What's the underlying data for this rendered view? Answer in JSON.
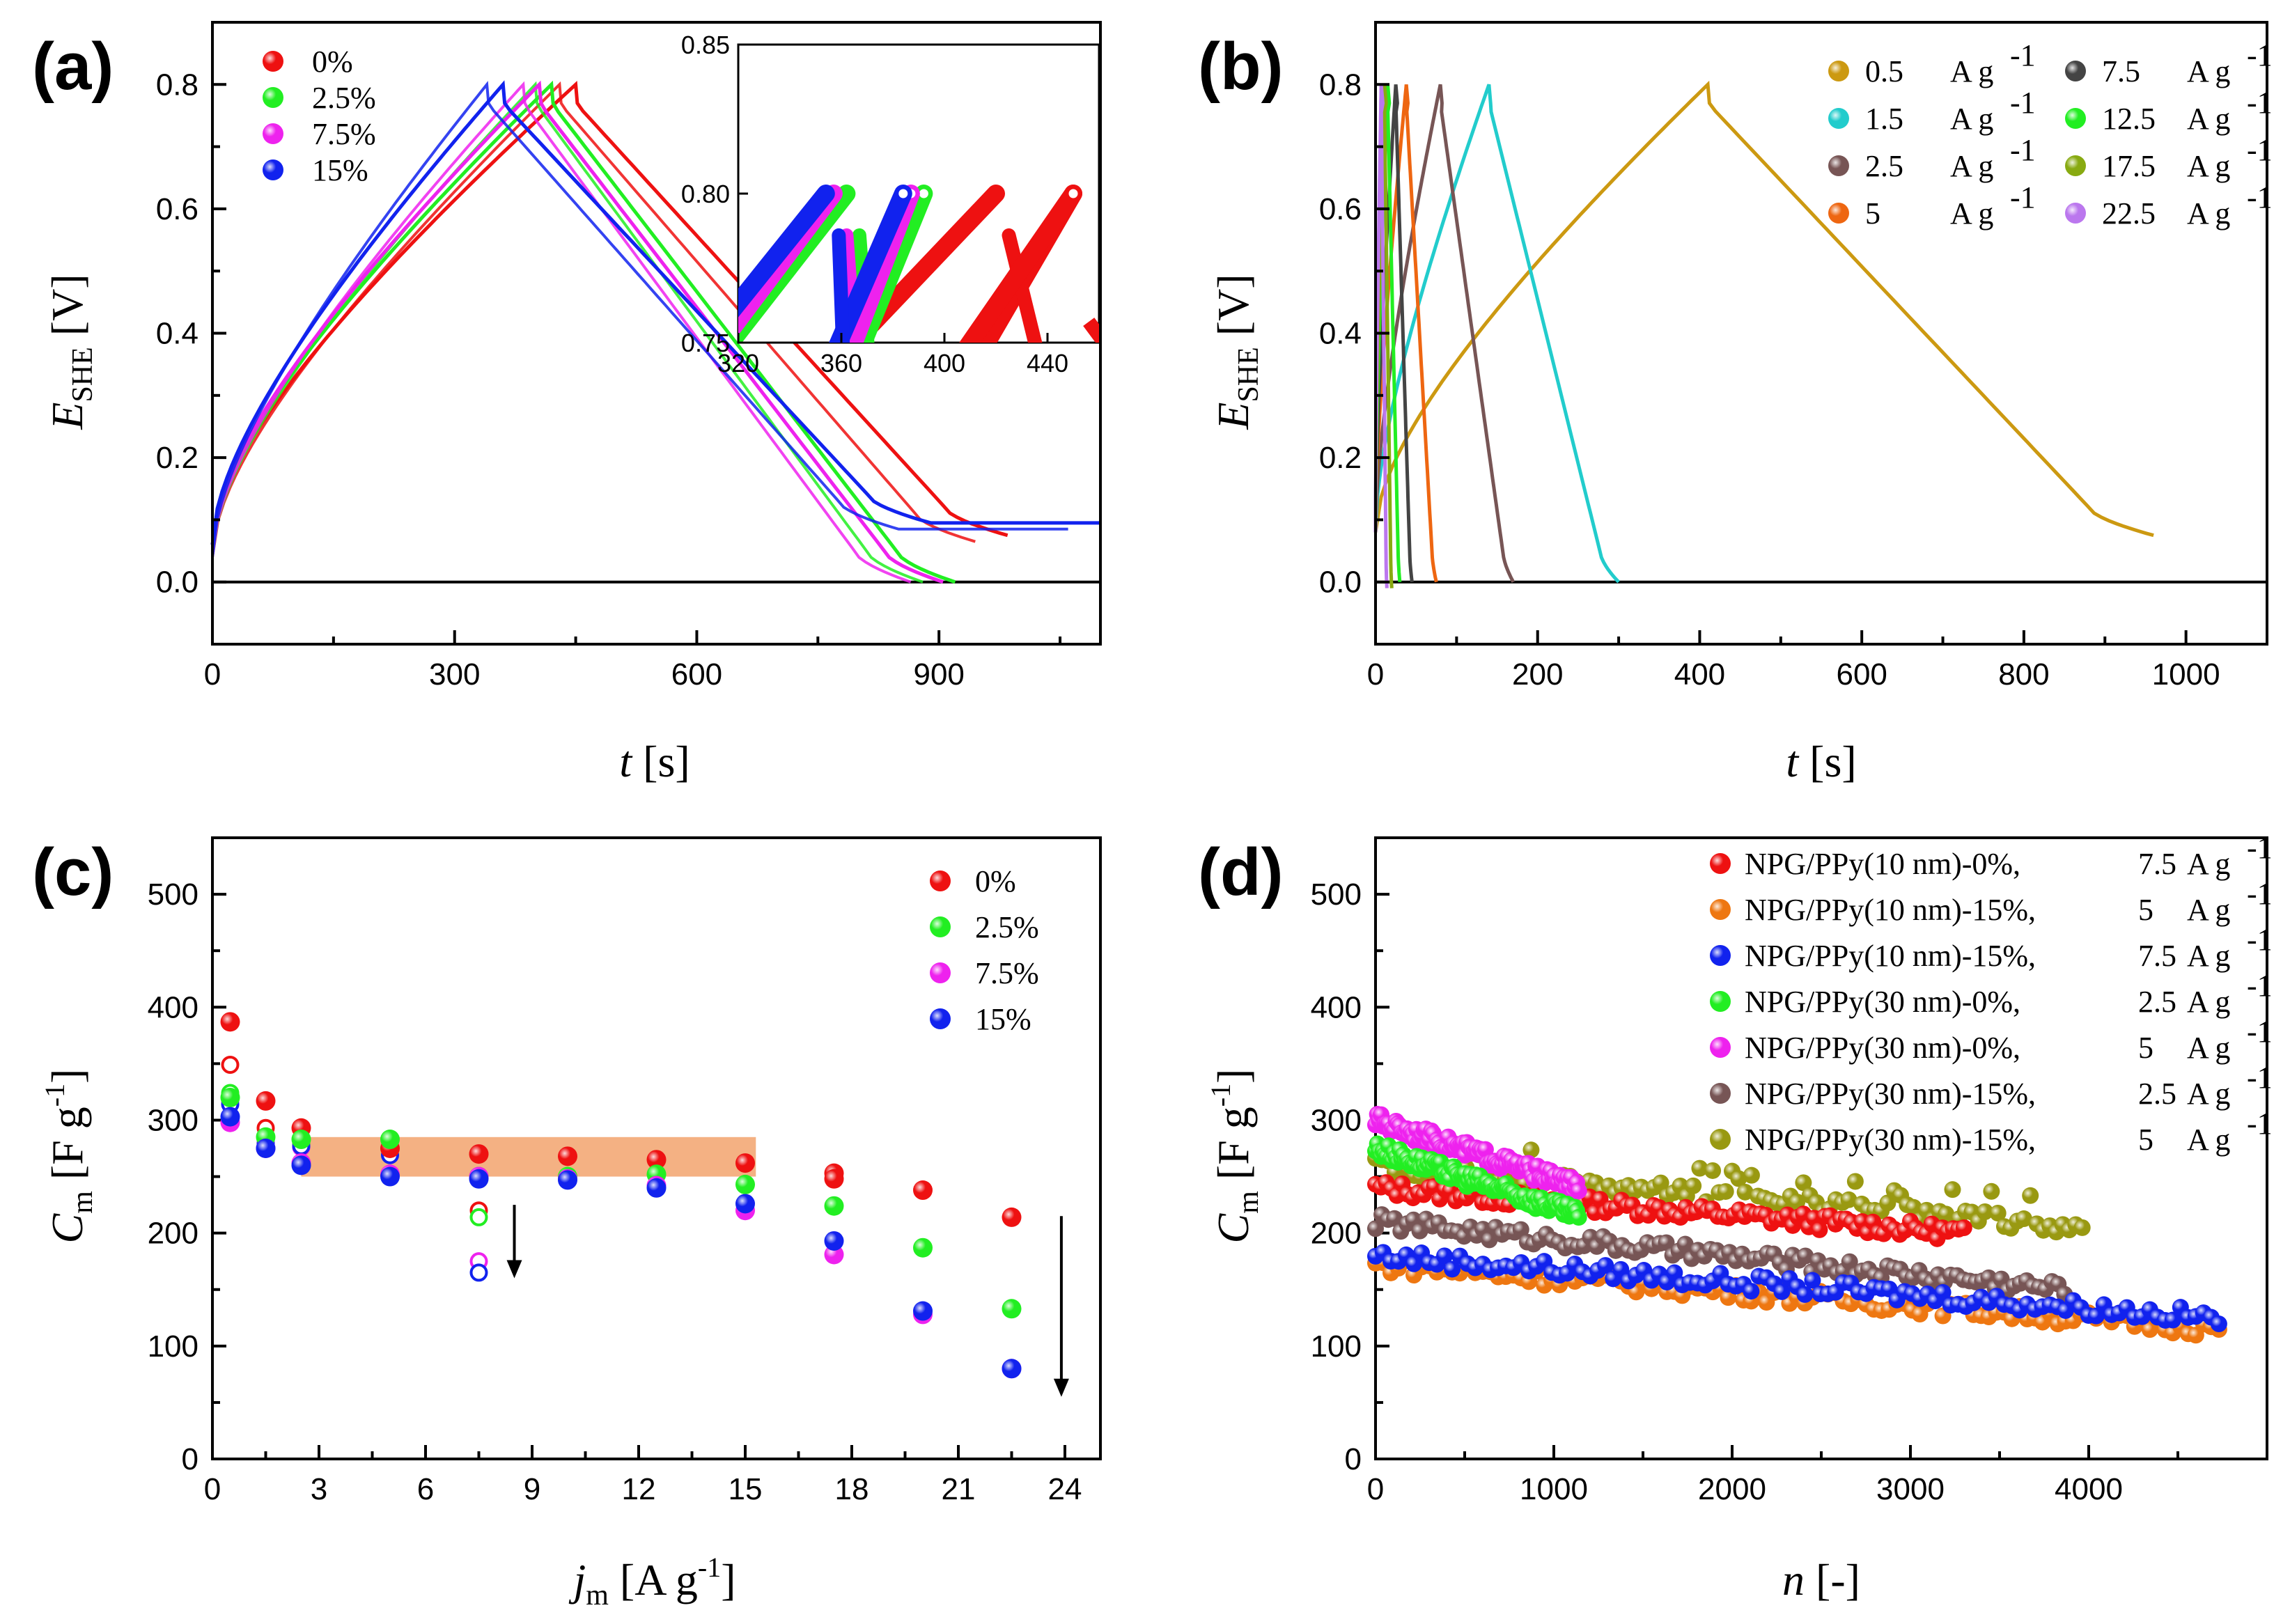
{
  "figure": {
    "panels": [
      "(a)",
      "(b)",
      "(c)",
      "(d)"
    ]
  },
  "chart_data": [
    {
      "panel": "(a)",
      "type": "line",
      "xlabel": "t [s]",
      "ylabel": "E_SHE [V]",
      "xlim": [
        0,
        1100
      ],
      "ylim": [
        -0.1,
        0.9
      ],
      "xticks": [
        0,
        300,
        600,
        900
      ],
      "yticks": [
        0.0,
        0.2,
        0.4,
        0.6,
        0.8
      ],
      "legend": [
        "0%",
        "2.5%",
        "7.5%",
        "15%"
      ],
      "colors": [
        "#ee1111",
        "#22ee22",
        "#ee22ee",
        "#1122ee"
      ],
      "series": [
        {
          "name": "0%",
          "charge_end": 450,
          "discharge_end": 985,
          "tail_end": 950,
          "tail_v": 0.075
        },
        {
          "name": "2.5%",
          "charge_end": 420,
          "discharge_end": 920,
          "tail_end": 920,
          "tail_v": 0.0
        },
        {
          "name": "7.5%",
          "charge_end": 405,
          "discharge_end": 905,
          "tail_end": 905,
          "tail_v": 0.0
        },
        {
          "name": "15%",
          "charge_end": 360,
          "discharge_end": 890,
          "tail_end": 1100,
          "tail_v": 0.095
        }
      ],
      "inset": {
        "xlim": [
          320,
          460
        ],
        "ylim": [
          0.75,
          0.85
        ],
        "xticks": [
          320,
          360,
          400,
          440
        ],
        "yticks": [
          0.75,
          0.8,
          0.85
        ],
        "ytick_labels": [
          "0.75",
          "0.80",
          "0.85"
        ]
      }
    },
    {
      "panel": "(b)",
      "type": "line",
      "xlabel": "t [s]",
      "ylabel": "E_SHE [V]",
      "xlim": [
        0,
        1100
      ],
      "ylim": [
        -0.1,
        0.9
      ],
      "xticks": [
        0,
        200,
        400,
        600,
        800,
        1000
      ],
      "yticks": [
        0.0,
        0.2,
        0.4,
        0.6,
        0.8
      ],
      "legend_values": [
        "0.5",
        "1.5",
        "2.5",
        "5",
        "7.5",
        "12.5",
        "17.5",
        "22.5"
      ],
      "legend_unit": "A g",
      "legend_unit_sup": "-1",
      "colors": [
        "#cc9911",
        "#22cccc",
        "#775555",
        "#ee6611",
        "#444444",
        "#22ee22",
        "#88aa11",
        "#bb77ee"
      ],
      "series": [
        {
          "name": "0.5",
          "charge_end": 410,
          "discharge_end": 960,
          "end_v": 0.075
        },
        {
          "name": "1.5",
          "charge_end": 140,
          "discharge_end": 300,
          "end_v": 0.0
        },
        {
          "name": "2.5",
          "charge_end": 80,
          "discharge_end": 170,
          "end_v": 0.0
        },
        {
          "name": "5",
          "charge_end": 38,
          "discharge_end": 75,
          "end_v": 0.0
        },
        {
          "name": "7.5",
          "charge_end": 25,
          "discharge_end": 45,
          "end_v": 0.0
        },
        {
          "name": "12.5",
          "charge_end": 15,
          "discharge_end": 30,
          "end_v": 0.0
        },
        {
          "name": "17.5",
          "charge_end": 11,
          "discharge_end": 20,
          "end_v": -0.01
        },
        {
          "name": "22.5",
          "charge_end": 7,
          "discharge_end": 14,
          "end_v": -0.01
        }
      ]
    },
    {
      "panel": "(c)",
      "type": "scatter",
      "xlabel": "j_m [A g^-1]",
      "ylabel": "C_m [F g^-1]",
      "xlim": [
        0,
        25
      ],
      "ylim": [
        0,
        550
      ],
      "xticks": [
        0,
        3,
        6,
        9,
        12,
        15,
        18,
        21,
        24
      ],
      "yticks": [
        0,
        100,
        200,
        300,
        400,
        500
      ],
      "legend": [
        "0%",
        "2.5%",
        "7.5%",
        "15%"
      ],
      "colors": [
        "#ee1111",
        "#22ee22",
        "#ee22ee",
        "#1122ee"
      ],
      "filled_series": [
        {
          "name": "0%",
          "x": [
            0.5,
            1.5,
            2.5,
            5,
            7.5,
            10,
            12.5,
            15,
            17.5,
            17.5,
            20,
            22.5
          ],
          "y": [
            387,
            317,
            293,
            275,
            270,
            268,
            265,
            262,
            253,
            248,
            238,
            214
          ]
        },
        {
          "name": "2.5%",
          "x": [
            0.5,
            1.5,
            2.5,
            5,
            7.5,
            10,
            12.5,
            15,
            17.5,
            20,
            22.5
          ],
          "y": [
            320,
            285,
            283,
            283,
            250,
            250,
            252,
            243,
            224,
            187,
            133
          ]
        },
        {
          "name": "7.5%",
          "x": [
            0.5,
            1.5,
            2.5,
            5,
            7.5,
            10,
            12.5,
            15,
            17.5,
            20,
            22.5
          ],
          "y": [
            298,
            275,
            262,
            252,
            250,
            248,
            242,
            220,
            181,
            128,
            80
          ]
        },
        {
          "name": "15%",
          "x": [
            0.5,
            1.5,
            2.5,
            5,
            7.5,
            10,
            12.5,
            15,
            17.5,
            20,
            22.5
          ],
          "y": [
            303,
            275,
            260,
            250,
            248,
            247,
            240,
            226,
            193,
            131,
            80
          ]
        }
      ],
      "open_series": [
        {
          "name": "0%",
          "x": [
            0.5,
            1.5,
            2.5,
            7.5
          ],
          "y": [
            349,
            293,
            280,
            220
          ]
        },
        {
          "name": "2.5%",
          "x": [
            0.5,
            1.5,
            2.5,
            5,
            7.5
          ],
          "y": [
            324,
            283,
            278,
            282,
            214
          ]
        },
        {
          "name": "7.5%",
          "x": [
            0.5,
            1.5,
            2.5,
            5,
            7.5
          ],
          "y": [
            317,
            280,
            276,
            277,
            175
          ]
        },
        {
          "name": "15%",
          "x": [
            0.5,
            1.5,
            2.5,
            5,
            7.5
          ],
          "y": [
            314,
            279,
            277,
            269,
            165
          ]
        }
      ],
      "band": {
        "x": [
          2.5,
          15.3
        ],
        "y": [
          250,
          285
        ],
        "color": "#f4b183"
      },
      "arrows": [
        {
          "x": 8.5,
          "y_from": 225,
          "y_to": 160
        },
        {
          "x": 23.9,
          "y_from": 215,
          "y_to": 55
        }
      ]
    },
    {
      "panel": "(d)",
      "type": "scatter",
      "xlabel": "n [-]",
      "ylabel": "C_m [F g^-1]",
      "xlim": [
        0,
        5000
      ],
      "ylim": [
        0,
        550
      ],
      "xticks": [
        0,
        1000,
        2000,
        3000,
        4000
      ],
      "yticks": [
        0,
        100,
        200,
        300,
        400,
        500
      ],
      "legend_names": [
        "NPG/PPy(10 nm)-0%,",
        "NPG/PPy(10 nm)-15%,",
        "NPG/PPy(10 nm)-15%,",
        "NPG/PPy(30 nm)-0%,",
        "NPG/PPy(30 nm)-0%,",
        "NPG/PPy(30 nm)-15%,",
        "NPG/PPy(30 nm)-15%,"
      ],
      "legend_rates": [
        "7.5",
        "5",
        "7.5",
        "2.5",
        "5",
        "2.5",
        "5"
      ],
      "legend_unit": "A g",
      "legend_unit_sup": "-1",
      "colors": [
        "#ee1111",
        "#ee7711",
        "#1122ee",
        "#22ee22",
        "#ee22ee",
        "#775555",
        "#999911"
      ],
      "series": [
        {
          "name": "NPG/PPy(10 nm)-0%, 7.5",
          "n_end": 3300,
          "c_start": 240,
          "c_end": 200
        },
        {
          "name": "NPG/PPy(10 nm)-15%, 5",
          "n_end": 4730,
          "c_start": 172,
          "c_end": 115
        },
        {
          "name": "NPG/PPy(10 nm)-15%, 7.5",
          "n_end": 4730,
          "c_start": 180,
          "c_end": 125
        },
        {
          "name": "NPG/PPy(30 nm)-0%, 2.5",
          "n_end": 1150,
          "c_start": 275,
          "c_end": 215
        },
        {
          "name": "NPG/PPy(30 nm)-0%, 5",
          "n_end": 1150,
          "c_start": 300,
          "c_end": 240
        },
        {
          "name": "NPG/PPy(30 nm)-15%, 2.5",
          "n_end": 3900,
          "c_start": 210,
          "c_end": 150
        },
        {
          "name": "NPG/PPy(30 nm)-15%, 5",
          "n_end": 4000,
          "c_start": 260,
          "c_end": 205
        }
      ]
    }
  ]
}
